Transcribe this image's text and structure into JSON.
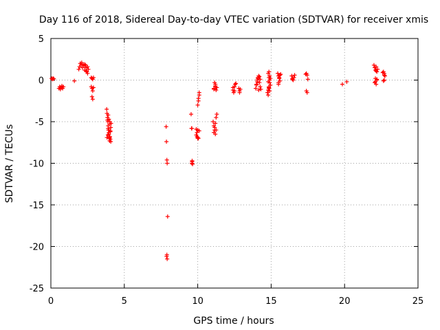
{
  "chart_data": {
    "type": "scatter",
    "title": "Day 116 of 2018, Sidereal Day-to-day VTEC variation (SDTVAR) for receiver xmis",
    "xlabel": "GPS time / hours",
    "ylabel": "SDTVAR / TECUs",
    "xlim": [
      0,
      25
    ],
    "ylim": [
      -25,
      5
    ],
    "xticks": [
      0,
      5,
      10,
      15,
      20,
      25
    ],
    "yticks": [
      5,
      0,
      -5,
      -10,
      -15,
      -20,
      -25
    ],
    "grid": true,
    "marker": "+",
    "color": "#ff0000",
    "series": [
      {
        "name": "SDTVAR",
        "x": [
          0.05,
          0.1,
          0.15,
          0.2,
          0.55,
          0.6,
          0.65,
          0.7,
          0.75,
          0.8,
          0.85,
          1.6,
          1.9,
          1.95,
          2.0,
          2.05,
          2.1,
          2.15,
          2.2,
          2.25,
          2.3,
          2.35,
          2.4,
          2.45,
          2.5,
          2.5,
          2.55,
          2.4,
          2.3,
          2.75,
          2.8,
          2.85,
          2.9,
          2.75,
          2.8,
          2.85,
          2.9,
          2.8,
          2.85,
          3.8,
          3.82,
          3.85,
          3.88,
          3.9,
          3.92,
          3.95,
          3.98,
          4.0,
          4.02,
          4.05,
          4.08,
          4.1,
          3.85,
          3.9,
          3.95,
          4.0,
          4.05,
          3.9,
          3.95,
          4.0,
          4.05,
          3.82,
          3.88,
          3.95,
          4.02,
          4.08,
          7.85,
          7.87,
          7.9,
          7.92,
          7.95,
          7.9,
          7.88,
          7.92,
          9.55,
          9.58,
          9.6,
          9.62,
          9.65,
          9.6,
          9.62,
          9.9,
          9.95,
          10.0,
          10.05,
          10.1,
          10.0,
          10.05,
          10.1,
          9.95,
          10.0,
          10.05,
          10.1,
          9.9,
          10.0,
          11.05,
          11.1,
          11.15,
          11.2,
          11.25,
          11.3,
          11.1,
          11.15,
          11.2,
          11.25,
          11.1,
          11.2,
          11.25,
          11.3,
          11.15,
          11.2,
          11.1,
          11.2,
          12.4,
          12.45,
          12.5,
          12.55,
          12.6,
          12.4,
          12.5,
          12.8,
          12.85,
          12.9,
          12.85,
          13.95,
          14.0,
          14.05,
          14.1,
          14.15,
          14.2,
          14.25,
          14.3,
          14.0,
          14.1,
          14.2,
          14.15,
          14.05,
          14.25,
          14.75,
          14.8,
          14.85,
          14.9,
          14.95,
          14.8,
          14.85,
          14.9,
          14.8,
          14.85,
          14.9,
          14.95,
          14.8,
          14.85,
          14.9,
          14.85,
          15.45,
          15.5,
          15.55,
          15.6,
          15.65,
          15.5,
          15.6,
          15.55,
          15.5,
          16.4,
          16.45,
          16.5,
          16.55,
          16.6,
          16.45,
          17.35,
          17.4,
          17.45,
          17.4,
          17.45,
          17.5,
          19.85,
          20.15,
          22.0,
          22.05,
          22.1,
          22.15,
          22.2,
          22.25,
          22.1,
          22.15,
          22.2,
          22.05,
          22.1,
          22.15,
          22.2,
          22.6,
          22.65,
          22.7,
          22.75,
          22.7,
          22.65,
          22.7
        ],
        "y": [
          0.2,
          0.1,
          0.2,
          0.15,
          -1.0,
          -0.8,
          -1.1,
          -0.9,
          -0.7,
          -1.0,
          -0.8,
          -0.1,
          1.3,
          1.6,
          2.0,
          1.8,
          2.1,
          1.5,
          1.9,
          1.7,
          1.2,
          1.8,
          1.5,
          1.0,
          0.8,
          1.6,
          1.3,
          1.1,
          1.9,
          0.3,
          0.2,
          0.1,
          0.3,
          -0.8,
          -1.0,
          -1.3,
          -0.9,
          -2.0,
          -2.3,
          -3.5,
          -4.0,
          -4.5,
          -5.0,
          -5.5,
          -6.0,
          -6.5,
          -7.0,
          -7.3,
          -6.8,
          -6.2,
          -5.7,
          -5.2,
          -4.8,
          -5.8,
          -6.3,
          -6.9,
          -7.1,
          -4.2,
          -4.7,
          -5.3,
          -6.1,
          -6.9,
          -6.6,
          -6.0,
          -5.0,
          -7.4,
          -5.6,
          -7.4,
          -9.6,
          -10.0,
          -16.4,
          -21.0,
          -21.2,
          -21.5,
          -4.1,
          -5.8,
          -5.8,
          -9.7,
          -10.1,
          -10.0,
          -9.8,
          -5.9,
          -6.3,
          -6.9,
          -7.0,
          -6.1,
          -3.0,
          -2.2,
          -1.5,
          -6.8,
          -6.0,
          -2.5,
          -1.8,
          -6.6,
          -7.0,
          -5.0,
          -5.5,
          -6.0,
          -6.5,
          -4.5,
          -4.1,
          -6.3,
          -5.7,
          -5.2,
          -6.0,
          -1.0,
          -0.5,
          -1.2,
          -0.9,
          -0.3,
          -0.8,
          -1.1,
          -0.7,
          -1.2,
          -1.5,
          -0.8,
          -0.5,
          -0.4,
          -0.9,
          -1.3,
          -1.0,
          -1.3,
          -1.1,
          -1.5,
          -1.0,
          -0.5,
          0.0,
          0.3,
          0.5,
          -0.3,
          -0.8,
          -1.1,
          -0.6,
          0.2,
          0.4,
          -1.2,
          -0.2,
          0.1,
          -1.5,
          -1.2,
          -0.8,
          -0.3,
          0.2,
          0.8,
          1.0,
          0.5,
          -1.8,
          -1.0,
          0.0,
          -0.6,
          -0.2,
          0.3,
          -1.3,
          -0.9,
          0.8,
          0.5,
          0.2,
          -0.1,
          0.7,
          -0.5,
          0.6,
          0.3,
          -0.3,
          0.5,
          0.2,
          0.0,
          0.3,
          0.6,
          0.1,
          0.7,
          0.8,
          0.6,
          -1.3,
          -1.5,
          0.1,
          -0.5,
          -0.2,
          1.8,
          1.5,
          1.2,
          1.6,
          1.0,
          1.3,
          -0.2,
          -0.5,
          0.0,
          -0.3,
          0.2,
          1.1,
          0.1,
          0.9,
          1.0,
          0.8,
          0.5,
          0.0,
          -0.1,
          0.6
        ]
      }
    ]
  }
}
